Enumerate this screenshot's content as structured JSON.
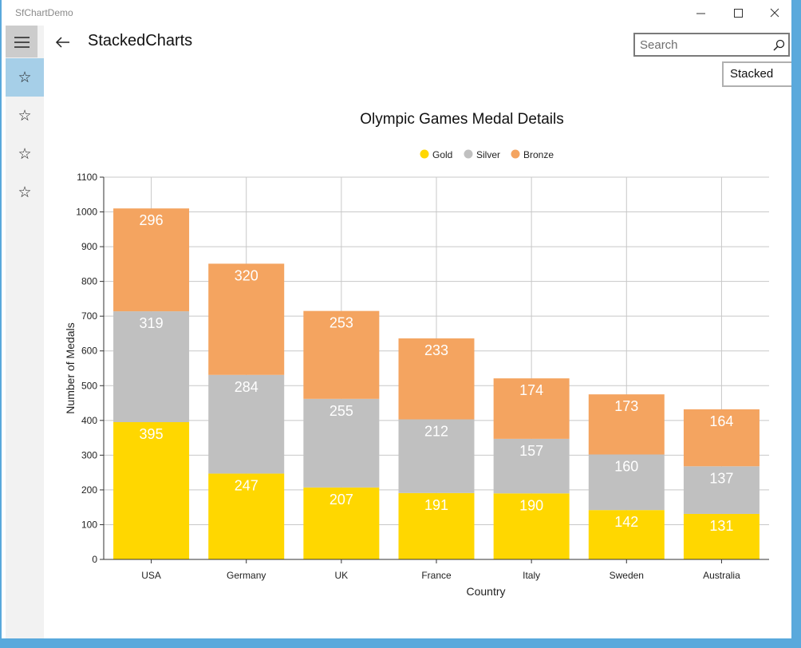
{
  "window": {
    "app_title": "SfChartDemo"
  },
  "nav": {
    "items": [
      {
        "icon": "star-icon"
      },
      {
        "icon": "star-icon"
      },
      {
        "icon": "star-icon"
      },
      {
        "icon": "star-icon"
      }
    ]
  },
  "page": {
    "title": "StackedCharts"
  },
  "search": {
    "placeholder": "Search",
    "value": ""
  },
  "combo": {
    "selected": "Stacked"
  },
  "colors": {
    "gold": "#FFD700",
    "silver": "#C0C0C0",
    "bronze": "#F4A460",
    "nav_selected": "#A6CFE8"
  },
  "chart_data": {
    "type": "bar",
    "stacked": true,
    "title": "Olympic Games Medal Details",
    "xlabel": "Country",
    "ylabel": "Number of Medals",
    "ylim": [
      0,
      1100
    ],
    "yticks": [
      "0",
      "100",
      "200",
      "300",
      "400",
      "500",
      "600",
      "700",
      "800",
      "900",
      "1000",
      "1100"
    ],
    "grid": true,
    "legend_position": "top",
    "categories": [
      "USA",
      "Germany",
      "UK",
      "France",
      "Italy",
      "Sweden",
      "Australia"
    ],
    "series": [
      {
        "name": "Gold",
        "color": "#FFD700",
        "values": [
          395,
          247,
          207,
          191,
          190,
          142,
          131
        ]
      },
      {
        "name": "Silver",
        "color": "#C0C0C0",
        "values": [
          319,
          284,
          255,
          212,
          157,
          160,
          137
        ]
      },
      {
        "name": "Bronze",
        "color": "#F4A460",
        "values": [
          296,
          320,
          253,
          233,
          174,
          173,
          164
        ]
      }
    ]
  }
}
